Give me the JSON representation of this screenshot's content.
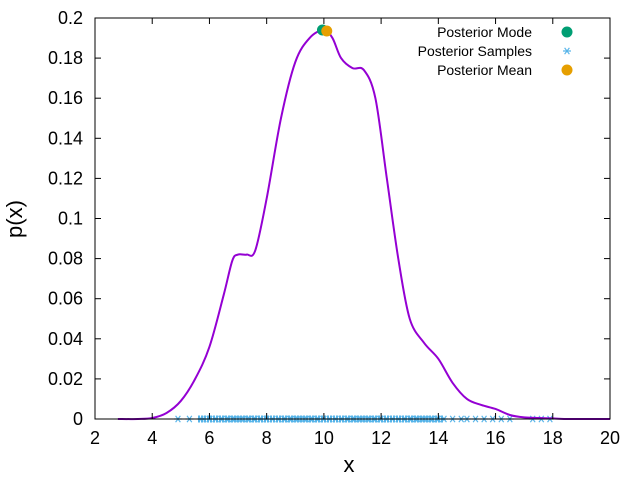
{
  "chart_data": {
    "type": "line",
    "title": "",
    "xlabel": "x",
    "ylabel": "p(x)",
    "xlim": [
      2,
      20
    ],
    "ylim": [
      0,
      0.2
    ],
    "x_ticks": [
      "2",
      "4",
      "6",
      "8",
      "10",
      "12",
      "14",
      "16",
      "18",
      "20"
    ],
    "y_ticks": [
      "0",
      "0.02",
      "0.04",
      "0.06",
      "0.08",
      "0.1",
      "0.12",
      "0.14",
      "0.16",
      "0.18",
      "0.2"
    ],
    "grid": false,
    "legend_position": "top-right",
    "series": [
      {
        "kind": "line",
        "color": "#9400d3",
        "points": [
          [
            2.8,
            0.0
          ],
          [
            3.5,
            0.0
          ],
          [
            4.0,
            0.0005
          ],
          [
            4.5,
            0.003
          ],
          [
            5.0,
            0.009
          ],
          [
            5.5,
            0.02
          ],
          [
            6.0,
            0.036
          ],
          [
            6.5,
            0.062
          ],
          [
            6.8,
            0.079
          ],
          [
            7.0,
            0.082
          ],
          [
            7.3,
            0.082
          ],
          [
            7.6,
            0.084
          ],
          [
            8.0,
            0.11
          ],
          [
            8.5,
            0.15
          ],
          [
            9.0,
            0.178
          ],
          [
            9.5,
            0.19
          ],
          [
            10.0,
            0.194
          ],
          [
            10.3,
            0.19
          ],
          [
            10.6,
            0.18
          ],
          [
            11.0,
            0.175
          ],
          [
            11.4,
            0.174
          ],
          [
            11.8,
            0.16
          ],
          [
            12.2,
            0.12
          ],
          [
            12.6,
            0.08
          ],
          [
            13.0,
            0.05
          ],
          [
            13.5,
            0.038
          ],
          [
            14.0,
            0.03
          ],
          [
            14.5,
            0.018
          ],
          [
            15.0,
            0.01
          ],
          [
            15.5,
            0.007
          ],
          [
            16.0,
            0.005
          ],
          [
            16.5,
            0.002
          ],
          [
            17.0,
            0.0008
          ],
          [
            17.5,
            0.0005
          ],
          [
            18.0,
            0.0003
          ],
          [
            18.5,
            0.0
          ],
          [
            20.0,
            0.0
          ]
        ]
      },
      {
        "name": "Posterior Mode",
        "kind": "point",
        "color": "#009e73",
        "points": [
          [
            9.95,
            0.194
          ]
        ]
      },
      {
        "name": "Posterior Samples",
        "kind": "samples",
        "color": "#56b4e9",
        "points": [
          [
            4.9,
            0
          ],
          [
            5.3,
            0
          ],
          [
            5.7,
            0
          ],
          [
            5.8,
            0
          ],
          [
            6.0,
            0
          ],
          [
            6.2,
            0
          ],
          [
            6.4,
            0
          ],
          [
            6.6,
            0
          ],
          [
            6.8,
            0
          ],
          [
            7.0,
            0
          ],
          [
            7.2,
            0
          ],
          [
            7.4,
            0
          ],
          [
            7.6,
            0
          ],
          [
            7.8,
            0
          ],
          [
            8.0,
            0
          ],
          [
            8.2,
            0
          ],
          [
            8.4,
            0
          ],
          [
            8.6,
            0
          ],
          [
            8.8,
            0
          ],
          [
            9.0,
            0
          ],
          [
            9.2,
            0
          ],
          [
            9.4,
            0
          ],
          [
            9.6,
            0
          ],
          [
            9.8,
            0
          ],
          [
            10.0,
            0
          ],
          [
            10.2,
            0
          ],
          [
            10.4,
            0
          ],
          [
            10.6,
            0
          ],
          [
            10.8,
            0
          ],
          [
            11.0,
            0
          ],
          [
            11.2,
            0
          ],
          [
            11.4,
            0
          ],
          [
            11.6,
            0
          ],
          [
            11.8,
            0
          ],
          [
            12.0,
            0
          ],
          [
            12.2,
            0
          ],
          [
            12.4,
            0
          ],
          [
            12.6,
            0
          ],
          [
            12.8,
            0
          ],
          [
            13.0,
            0
          ],
          [
            13.2,
            0
          ],
          [
            13.4,
            0
          ],
          [
            13.6,
            0
          ],
          [
            13.8,
            0
          ],
          [
            14.0,
            0
          ],
          [
            14.2,
            0
          ],
          [
            14.5,
            0
          ],
          [
            14.8,
            0
          ],
          [
            15.0,
            0
          ],
          [
            15.3,
            0
          ],
          [
            15.6,
            0
          ],
          [
            15.9,
            0
          ],
          [
            16.2,
            0
          ],
          [
            16.5,
            0
          ],
          [
            17.3,
            0
          ],
          [
            17.6,
            0
          ],
          [
            17.9,
            0
          ]
        ]
      },
      {
        "name": "Posterior Mean",
        "kind": "point",
        "color": "#e69f00",
        "points": [
          [
            10.1,
            0.1935
          ]
        ]
      }
    ]
  }
}
